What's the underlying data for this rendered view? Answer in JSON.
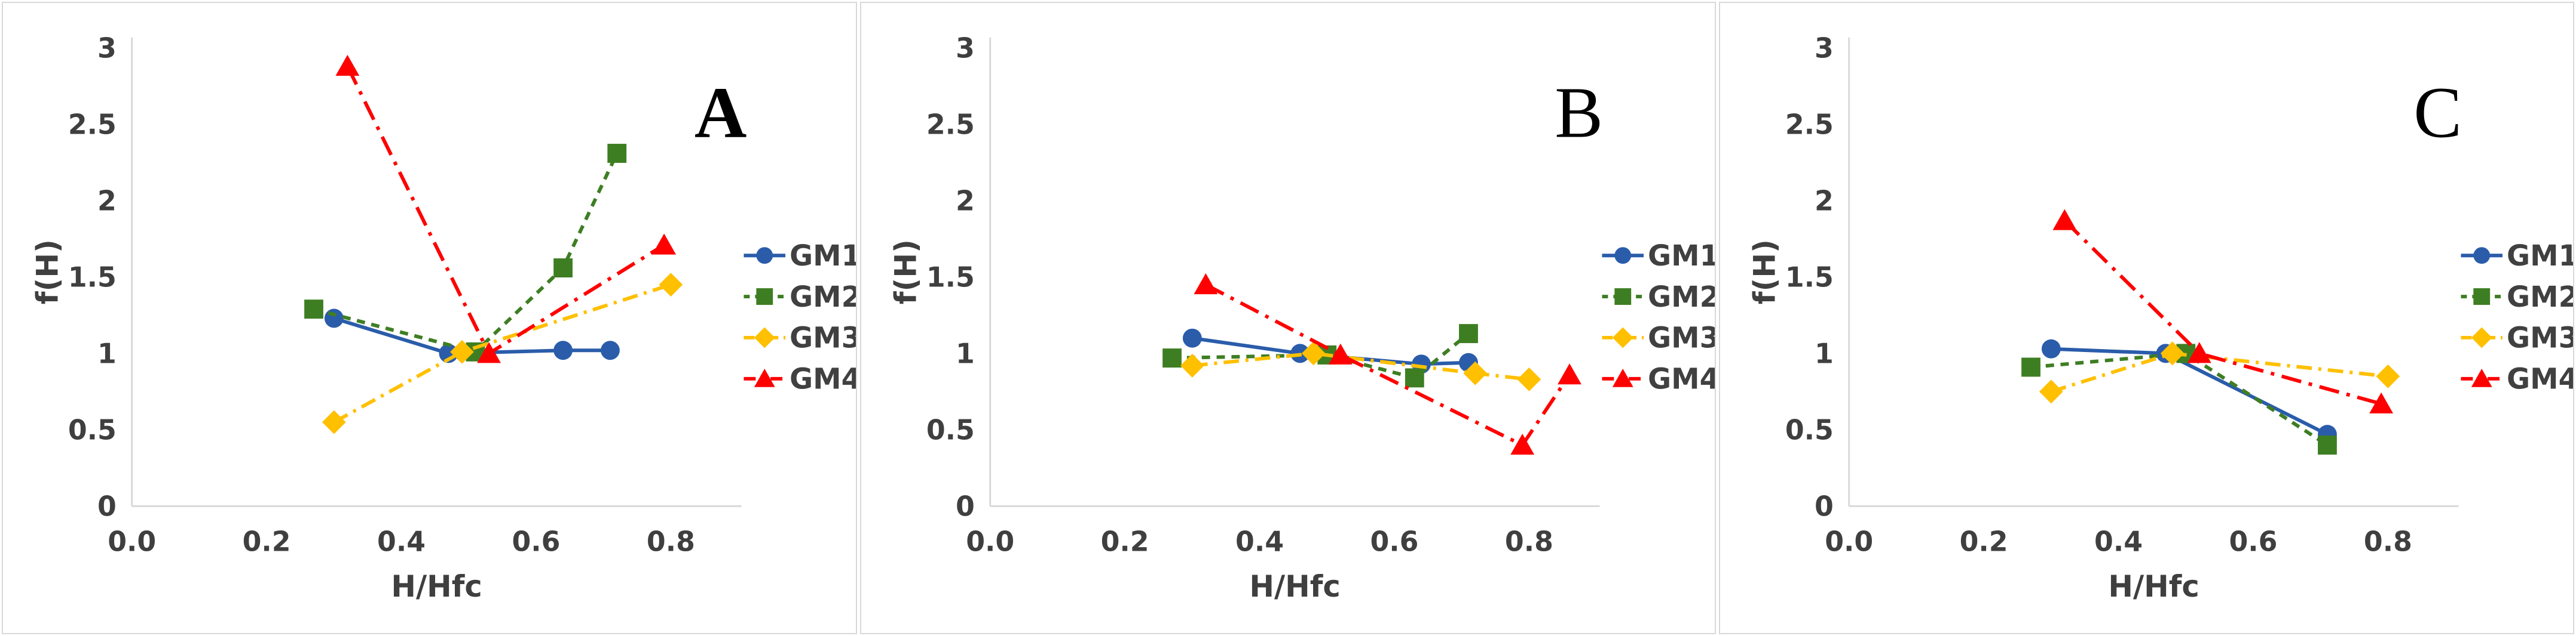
{
  "figure": {
    "title": "",
    "background": "#ffffff",
    "panel_border_color": "#d8d8d8",
    "axis_line_color": "#d9d9d9",
    "text_color": "#3f3f3f",
    "legend_text_color": "#404040",
    "series_styles": {
      "GM1": {
        "color": "#2a5caa",
        "marker": "circle",
        "dash": "solid"
      },
      "GM2": {
        "color": "#3e7e23",
        "marker": "square",
        "dash": "dashed"
      },
      "GM3": {
        "color": "#ffc000",
        "marker": "diamond",
        "dash": "dashdot"
      },
      "GM4": {
        "color": "#ff0000",
        "marker": "triangle",
        "dash": "dashdot-long"
      }
    },
    "legend_labels": [
      "GM1",
      "GM2",
      "GM3",
      "GM4"
    ]
  },
  "chart_data": [
    {
      "type": "line",
      "panel_label": "A",
      "panel_label_weight": "bold",
      "xlabel": "H/Hfc",
      "ylabel": "f(H)",
      "xlim": [
        0,
        0.9
      ],
      "ylim": [
        0,
        3
      ],
      "x_ticks": [
        0.0,
        0.2,
        0.4,
        0.6,
        0.8
      ],
      "x_tick_labels": [
        "0.0",
        "0.2",
        "0.4",
        "0.6",
        "0.8"
      ],
      "y_ticks": [
        0,
        0.5,
        1,
        1.5,
        2,
        2.5,
        3
      ],
      "y_tick_labels": [
        "0",
        "0.5",
        "1",
        "1.5",
        "2",
        "2.5",
        "3"
      ],
      "grid": false,
      "legend_position": "right",
      "series": [
        {
          "name": "GM1",
          "points": [
            [
              0.3,
              1.23
            ],
            [
              0.47,
              1.0
            ],
            [
              0.64,
              1.02
            ],
            [
              0.71,
              1.02
            ]
          ]
        },
        {
          "name": "GM2",
          "points": [
            [
              0.27,
              1.29
            ],
            [
              0.51,
              1.01
            ],
            [
              0.64,
              1.56
            ],
            [
              0.72,
              2.31
            ]
          ]
        },
        {
          "name": "GM3",
          "points": [
            [
              0.3,
              0.55
            ],
            [
              0.49,
              1.01
            ],
            [
              0.8,
              1.45
            ]
          ]
        },
        {
          "name": "GM4",
          "points": [
            [
              0.32,
              2.88
            ],
            [
              0.53,
              1.0
            ],
            [
              0.79,
              1.71
            ]
          ]
        }
      ]
    },
    {
      "type": "line",
      "panel_label": "B",
      "panel_label_weight": "normal",
      "xlabel": "H/Hfc",
      "ylabel": "f(H)",
      "xlim": [
        0,
        0.9
      ],
      "ylim": [
        0,
        3
      ],
      "x_ticks": [
        0.0,
        0.2,
        0.4,
        0.6,
        0.8
      ],
      "x_tick_labels": [
        "0.0",
        "0.2",
        "0.4",
        "0.6",
        "0.8"
      ],
      "y_ticks": [
        0,
        0.5,
        1,
        1.5,
        2,
        2.5,
        3
      ],
      "y_tick_labels": [
        "0",
        "0.5",
        "1",
        "1.5",
        "2",
        "2.5",
        "3"
      ],
      "grid": false,
      "legend_position": "right",
      "series": [
        {
          "name": "GM1",
          "points": [
            [
              0.3,
              1.1
            ],
            [
              0.46,
              1.0
            ],
            [
              0.64,
              0.93
            ],
            [
              0.71,
              0.94
            ]
          ]
        },
        {
          "name": "GM2",
          "points": [
            [
              0.27,
              0.97
            ],
            [
              0.5,
              0.99
            ],
            [
              0.63,
              0.84
            ],
            [
              0.71,
              1.13
            ]
          ]
        },
        {
          "name": "GM3",
          "points": [
            [
              0.3,
              0.92
            ],
            [
              0.48,
              1.0
            ],
            [
              0.72,
              0.87
            ],
            [
              0.8,
              0.83
            ]
          ]
        },
        {
          "name": "GM4",
          "points": [
            [
              0.32,
              1.45
            ],
            [
              0.52,
              0.99
            ],
            [
              0.79,
              0.4
            ],
            [
              0.86,
              0.86
            ]
          ]
        }
      ]
    },
    {
      "type": "line",
      "panel_label": "C",
      "panel_label_weight": "normal",
      "xlabel": "H/Hfc",
      "ylabel": "f(H)",
      "xlim": [
        0,
        0.9
      ],
      "ylim": [
        0,
        3
      ],
      "x_ticks": [
        0.0,
        0.2,
        0.4,
        0.6,
        0.8
      ],
      "x_tick_labels": [
        "0.0",
        "0.2",
        "0.4",
        "0.6",
        "0.8"
      ],
      "y_ticks": [
        0,
        0.5,
        1,
        1.5,
        2,
        2.5,
        3
      ],
      "y_tick_labels": [
        "0",
        "0.5",
        "1",
        "1.5",
        "2",
        "2.5",
        "3"
      ],
      "grid": false,
      "legend_position": "right",
      "series": [
        {
          "name": "GM1",
          "points": [
            [
              0.3,
              1.03
            ],
            [
              0.47,
              1.0
            ],
            [
              0.71,
              0.47
            ]
          ]
        },
        {
          "name": "GM2",
          "points": [
            [
              0.27,
              0.91
            ],
            [
              0.5,
              1.0
            ],
            [
              0.71,
              0.4
            ]
          ]
        },
        {
          "name": "GM3",
          "points": [
            [
              0.3,
              0.75
            ],
            [
              0.48,
              1.0
            ],
            [
              0.8,
              0.85
            ]
          ]
        },
        {
          "name": "GM4",
          "points": [
            [
              0.32,
              1.87
            ],
            [
              0.52,
              1.0
            ],
            [
              0.79,
              0.67
            ]
          ]
        }
      ]
    }
  ]
}
